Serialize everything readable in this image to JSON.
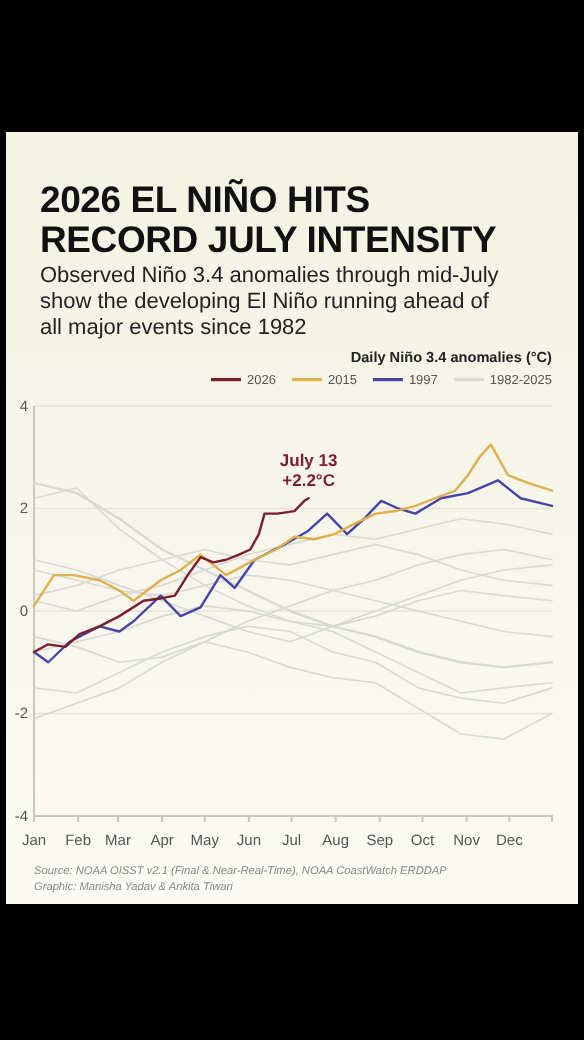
{
  "chart_data": {
    "type": "line",
    "title": "2026 EL NIÑO HITS\nRECORD JULY INTENSITY",
    "subtitle": "Observed Niño 3.4 anomalies through mid-July show the developing El Niño running ahead of all major events since 1982",
    "legend_title": "Daily Niño 3.4 anomalies (°C)",
    "legend": "top right",
    "grid": "y",
    "line_style": "solid",
    "marker": "none",
    "annotations": [
      {
        "text": "July 13\n+2.2°C",
        "x": "--07-13",
        "y": 2.2
      },
      "Source: NOAA OISST v2.1 (Final & Near-Real-Time), NOAA CoastWatch ERDDAP",
      "Graphic: Manisha Yadav & Ankita Tiwari"
    ],
    "xlim": [
      "--01-01",
      "--12-31"
    ],
    "xticks": [
      {
        "value": "--01-01",
        "label": "Jan"
      },
      {
        "value": "--02-01",
        "label": "Feb"
      },
      {
        "value": "--03-01",
        "label": "Mar"
      },
      {
        "value": "--04-01",
        "label": "Apr"
      },
      {
        "value": "--05-01",
        "label": "May"
      },
      {
        "value": "--06-01",
        "label": "Jun"
      },
      {
        "value": "--07-01",
        "label": "Jul"
      },
      {
        "value": "--08-01",
        "label": "Aug"
      },
      {
        "value": "--09-01",
        "label": "Sep"
      },
      {
        "value": "--10-01",
        "label": "Oct"
      },
      {
        "value": "--11-01",
        "label": "Nov"
      },
      {
        "value": "--12-01",
        "label": "Dec"
      }
    ],
    "ylim": [
      -4,
      4
    ],
    "yticks": [
      -4,
      -2,
      0,
      2,
      4
    ],
    "x": [
      "--01-01",
      "--01-31",
      "--03-02",
      "--04-01",
      "--05-01",
      "--05-31",
      "--06-30",
      "--07-30",
      "--08-29",
      "--09-28",
      "--10-28",
      "--11-27",
      "--12-31"
    ],
    "series": [
      {
        "name": "2026",
        "color": "#7b1e2c",
        "x": [
          "--01-01",
          "--01-11",
          "--01-23",
          "--02-02",
          "--02-16",
          "--03-02",
          "--03-19",
          "--04-01",
          "--04-10",
          "--04-19",
          "--04-28",
          "--05-07",
          "--05-16",
          "--05-25",
          "--06-02",
          "--06-08",
          "--06-12",
          "--06-21",
          "--07-03",
          "--07-10",
          "--07-13"
        ],
        "values": [
          -0.8,
          -0.65,
          -0.7,
          -0.45,
          -0.3,
          -0.1,
          0.2,
          0.25,
          0.3,
          0.7,
          1.05,
          0.95,
          1.0,
          1.1,
          1.2,
          1.5,
          1.9,
          1.9,
          1.95,
          2.15,
          2.2
        ]
      },
      {
        "name": "2015",
        "color": "#e0b04c",
        "x": [
          "--01-01",
          "--01-15",
          "--01-29",
          "--02-16",
          "--03-02",
          "--03-12",
          "--03-31",
          "--04-14",
          "--04-28",
          "--05-16",
          "--06-05",
          "--06-20",
          "--07-03",
          "--07-17",
          "--07-31",
          "--08-14",
          "--08-29",
          "--09-12",
          "--09-26",
          "--10-10",
          "--10-24",
          "--11-02",
          "--11-10",
          "--11-18",
          "--11-30",
          "--12-14",
          "--12-31"
        ],
        "values": [
          0.1,
          0.7,
          0.7,
          0.6,
          0.4,
          0.2,
          0.6,
          0.8,
          1.1,
          0.7,
          1.0,
          1.2,
          1.45,
          1.4,
          1.5,
          1.7,
          1.9,
          1.95,
          2.05,
          2.2,
          2.35,
          2.65,
          3.0,
          3.25,
          2.65,
          2.5,
          2.35
        ]
      },
      {
        "name": "1997",
        "color": "#4646a6",
        "x": [
          "--01-01",
          "--01-11",
          "--01-26",
          "--02-16",
          "--03-02",
          "--03-12",
          "--03-31",
          "--04-14",
          "--04-28",
          "--05-12",
          "--05-22",
          "--06-05",
          "--06-23",
          "--07-12",
          "--07-26",
          "--08-09",
          "--08-21",
          "--09-02",
          "--09-14",
          "--09-26",
          "--10-14",
          "--11-02",
          "--11-23",
          "--12-09",
          "--12-31"
        ],
        "values": [
          -0.8,
          -1.0,
          -0.6,
          -0.3,
          -0.4,
          -0.2,
          0.3,
          -0.1,
          0.07,
          0.7,
          0.45,
          1.0,
          1.25,
          1.55,
          1.9,
          1.5,
          1.8,
          2.15,
          2.0,
          1.9,
          2.2,
          2.3,
          2.55,
          2.2,
          2.05
        ]
      },
      {
        "name": "1982-2025",
        "color": "#d9d9d4",
        "values": [
          2.5,
          2.3,
          1.8,
          1.2,
          0.8,
          0.4,
          0.0,
          -0.3,
          -0.5,
          -0.8,
          -1.0,
          -1.1,
          -1.0
        ]
      },
      {
        "color": "#d9d9d4",
        "values": [
          2.2,
          2.4,
          1.6,
          1.0,
          0.5,
          0.1,
          -0.2,
          -0.4,
          -0.8,
          -1.2,
          -1.6,
          -1.5,
          -1.4
        ]
      },
      {
        "color": "#d9d9d4",
        "values": [
          -1.5,
          -1.6,
          -1.2,
          -0.8,
          -0.5,
          -0.3,
          -0.4,
          -0.8,
          -1.0,
          -1.5,
          -1.7,
          -1.8,
          -1.5
        ]
      },
      {
        "color": "#d9d9d4",
        "values": [
          -2.1,
          -1.8,
          -1.5,
          -1.0,
          -0.6,
          -0.2,
          0.1,
          0.4,
          0.6,
          0.9,
          1.1,
          1.2,
          1.0
        ]
      },
      {
        "color": "#d9d9d4",
        "values": [
          0.2,
          0.0,
          0.3,
          0.5,
          0.8,
          1.1,
          1.3,
          1.5,
          1.4,
          1.6,
          1.8,
          1.7,
          1.5
        ]
      },
      {
        "color": "#d9d9d4",
        "values": [
          -0.8,
          -0.6,
          -0.4,
          -0.1,
          0.1,
          0.0,
          -0.2,
          -0.3,
          -0.1,
          0.2,
          0.4,
          0.3,
          0.2
        ]
      },
      {
        "color": "#d9d9d4",
        "values": [
          0.8,
          0.6,
          0.4,
          0.3,
          0.5,
          0.7,
          0.6,
          0.4,
          0.2,
          0.0,
          -0.2,
          -0.4,
          -0.5
        ]
      },
      {
        "color": "#d9d9d4",
        "values": [
          -0.5,
          -0.7,
          -1.0,
          -0.9,
          -0.6,
          -0.8,
          -1.1,
          -1.3,
          -1.4,
          -1.9,
          -2.4,
          -2.5,
          -2.0
        ]
      },
      {
        "color": "#d9d9d4",
        "values": [
          1.0,
          0.8,
          0.5,
          0.2,
          -0.1,
          -0.4,
          -0.6,
          -0.3,
          0.0,
          0.3,
          0.6,
          0.8,
          0.9
        ]
      },
      {
        "color": "#d9d9d4",
        "values": [
          0.3,
          0.5,
          0.8,
          1.0,
          1.2,
          1.0,
          0.9,
          1.1,
          1.3,
          1.1,
          0.8,
          0.6,
          0.5
        ]
      }
    ]
  }
}
